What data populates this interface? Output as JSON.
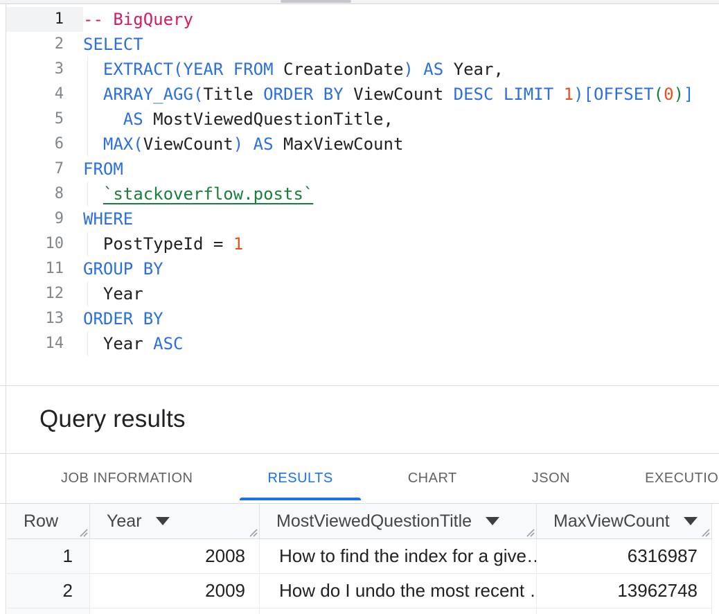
{
  "editor": {
    "active_line": 1,
    "token_colors": {
      "kw": "#2b6fe3",
      "com": "#d81b60",
      "num": "#ea501e",
      "grn": "#188038",
      "tbl": "#188038",
      "plain": "#202124"
    },
    "lines": [
      {
        "n": "1",
        "g": false,
        "seg": [
          {
            "t": "-- BigQuery",
            "c": "com"
          }
        ]
      },
      {
        "n": "2",
        "g": false,
        "seg": [
          {
            "t": "SELECT",
            "c": "kw"
          }
        ]
      },
      {
        "n": "3",
        "g": true,
        "seg": [
          {
            "t": "  "
          },
          {
            "t": "EXTRACT(YEAR FROM",
            "c": "kw"
          },
          {
            "t": " CreationDate"
          },
          {
            "t": ")",
            "c": "kw"
          },
          {
            "t": " "
          },
          {
            "t": "AS",
            "c": "kw"
          },
          {
            "t": " Year,"
          }
        ]
      },
      {
        "n": "4",
        "g": true,
        "seg": [
          {
            "t": "  "
          },
          {
            "t": "ARRAY_AGG(",
            "c": "kw"
          },
          {
            "t": "Title "
          },
          {
            "t": "ORDER BY",
            "c": "kw"
          },
          {
            "t": " ViewCount "
          },
          {
            "t": "DESC LIMIT",
            "c": "kw"
          },
          {
            "t": " "
          },
          {
            "t": "1",
            "c": "num"
          },
          {
            "t": ")[OFFSET",
            "c": "kw"
          },
          {
            "t": "(",
            "c": "grn"
          },
          {
            "t": "0",
            "c": "num"
          },
          {
            "t": ")",
            "c": "grn"
          },
          {
            "t": "]",
            "c": "kw"
          }
        ]
      },
      {
        "n": "5",
        "g": true,
        "seg": [
          {
            "t": "    "
          },
          {
            "t": "AS",
            "c": "kw"
          },
          {
            "t": " MostViewedQuestionTitle,"
          }
        ]
      },
      {
        "n": "6",
        "g": true,
        "seg": [
          {
            "t": "  "
          },
          {
            "t": "MAX(",
            "c": "kw"
          },
          {
            "t": "ViewCount"
          },
          {
            "t": ")",
            "c": "kw"
          },
          {
            "t": " "
          },
          {
            "t": "AS",
            "c": "kw"
          },
          {
            "t": " MaxViewCount"
          }
        ]
      },
      {
        "n": "7",
        "g": false,
        "seg": [
          {
            "t": "FROM",
            "c": "kw"
          }
        ]
      },
      {
        "n": "8",
        "g": true,
        "seg": [
          {
            "t": "  "
          },
          {
            "t": "`stackoverflow.posts`",
            "c": "tbl"
          }
        ]
      },
      {
        "n": "9",
        "g": false,
        "seg": [
          {
            "t": "WHERE",
            "c": "kw"
          }
        ]
      },
      {
        "n": "10",
        "g": true,
        "seg": [
          {
            "t": "  "
          },
          {
            "t": "PostTypeId = "
          },
          {
            "t": "1",
            "c": "num"
          }
        ]
      },
      {
        "n": "11",
        "g": false,
        "seg": [
          {
            "t": "GROUP BY",
            "c": "kw"
          }
        ]
      },
      {
        "n": "12",
        "g": true,
        "seg": [
          {
            "t": "  Year"
          }
        ]
      },
      {
        "n": "13",
        "g": false,
        "seg": [
          {
            "t": "ORDER BY",
            "c": "kw"
          }
        ]
      },
      {
        "n": "14",
        "g": true,
        "seg": [
          {
            "t": "  Year "
          },
          {
            "t": "ASC",
            "c": "kw"
          }
        ]
      }
    ]
  },
  "results": {
    "title": "Query results"
  },
  "tabs": {
    "active": "RESULTS",
    "items": [
      {
        "label": "JOB INFORMATION"
      },
      {
        "label": "RESULTS"
      },
      {
        "label": "CHART"
      },
      {
        "label": "JSON"
      },
      {
        "label": "EXECUTION DETAILS"
      }
    ]
  },
  "table": {
    "columns": [
      {
        "label": "Row",
        "sortable": false
      },
      {
        "label": "Year",
        "sortable": true
      },
      {
        "label": "MostViewedQuestionTitle",
        "sortable": true
      },
      {
        "label": "MaxViewCount",
        "sortable": true
      }
    ],
    "rows": [
      [
        "1",
        "2008",
        "How to find the index for a give…",
        "6316987"
      ],
      [
        "2",
        "2009",
        "How do I undo the most recent …",
        "13962748"
      ]
    ],
    "partial_third_row_visible": true
  },
  "colors": {
    "accent": "#1a73e8",
    "tab_inactive": "#5f6368",
    "handle": "#9aa0a6"
  }
}
